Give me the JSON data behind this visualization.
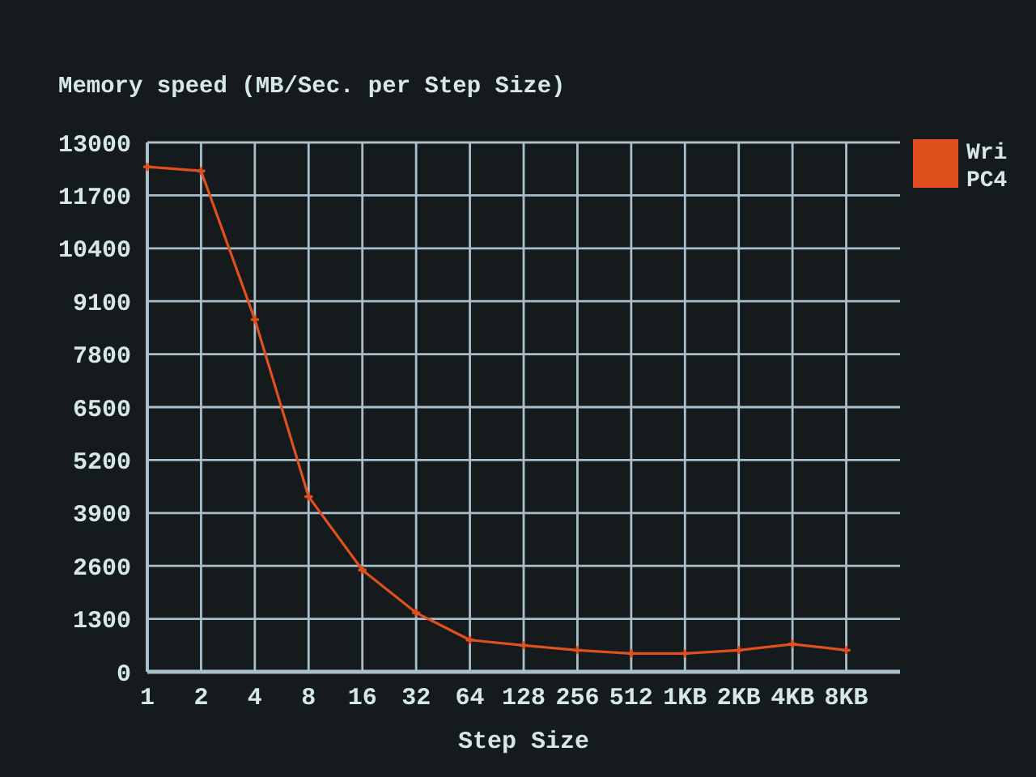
{
  "chart_data": {
    "type": "line",
    "title": "Memory speed (MB/Sec. per Step Size)",
    "xlabel": "Step Size",
    "categories": [
      "1",
      "2",
      "4",
      "8",
      "16",
      "32",
      "64",
      "128",
      "256",
      "512",
      "1KB",
      "2KB",
      "4KB",
      "8KB"
    ],
    "series": [
      {
        "name": "Wri\nPC4",
        "color": "#e0501e",
        "values": [
          12400,
          12300,
          8650,
          4300,
          2500,
          1450,
          780,
          650,
          530,
          450,
          450,
          530,
          680,
          530
        ]
      }
    ],
    "ylim": [
      0,
      13000
    ],
    "yticks": [
      0,
      1300,
      2600,
      3900,
      5200,
      6500,
      7800,
      9100,
      10400,
      11700,
      13000
    ],
    "grid": true,
    "legend": "top right",
    "marker": "cross",
    "line_style": "solid"
  }
}
